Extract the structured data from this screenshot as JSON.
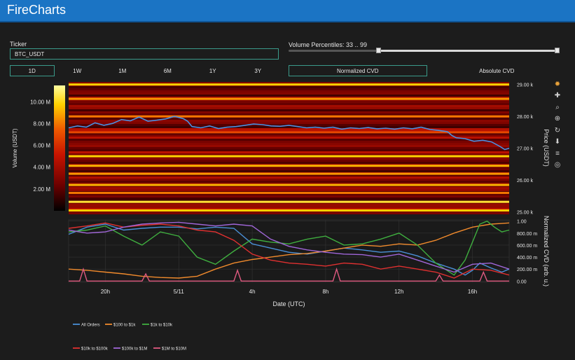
{
  "header": {
    "title": "FireCharts"
  },
  "controls": {
    "ticker_label": "Ticker",
    "ticker_value": "BTC_USDT",
    "volume_label": "Volume Percentiles: 33 .. 99",
    "volume_percentiles": [
      33,
      99
    ],
    "timeframes": [
      "1D",
      "1W",
      "1M",
      "6M",
      "1Y",
      "3Y"
    ],
    "active_timeframe": "1D",
    "modes": [
      "Normalized CVD",
      "Absolute CVD"
    ],
    "active_mode": "Normalized CVD"
  },
  "modebar_icons": [
    "plotly-logo-icon",
    "pan-icon",
    "zoom-icon",
    "zoom-in-icon",
    "reset-icon",
    "download-icon",
    "spike-lines-icon",
    "autoscale-icon"
  ],
  "chart_data": [
    {
      "type": "heatmap",
      "title": "",
      "colorbar_title": "Volume (USDT)",
      "colorbar_ticks": [
        "2.00 M",
        "4.00 M",
        "6.00 M",
        "8.00 M",
        "10.00 M"
      ],
      "colorbar_tick_values": [
        2,
        4,
        6,
        8,
        10
      ],
      "colorbar_range": [
        0,
        11.5
      ],
      "colorscale": [
        "#000000",
        "#6b0000",
        "#c81400",
        "#f05a00",
        "#ffd200",
        "#ffffa0"
      ],
      "ylabel": "Price (USDT)",
      "y_ticks": [
        "25.00 k",
        "26.00 k",
        "27.00 k",
        "28.00 k",
        "29.00 k"
      ],
      "y_tick_values": [
        25000,
        26000,
        27000,
        28000,
        29000
      ],
      "ylim": [
        24950,
        29080
      ],
      "bright_bands": [
        {
          "price": 25050,
          "intensity": 0.85
        },
        {
          "price": 25320,
          "intensity": 0.9
        },
        {
          "price": 25600,
          "intensity": 0.7
        },
        {
          "price": 25850,
          "intensity": 0.8
        },
        {
          "price": 26200,
          "intensity": 0.75
        },
        {
          "price": 26450,
          "intensity": 0.8
        },
        {
          "price": 26750,
          "intensity": 0.85
        },
        {
          "price": 27500,
          "intensity": 0.6
        },
        {
          "price": 28000,
          "intensity": 0.7
        },
        {
          "price": 28550,
          "intensity": 0.75
        },
        {
          "price": 29000,
          "intensity": 0.85
        }
      ],
      "price_series_color": "#4a90e2",
      "price_series": [
        [
          0,
          27640
        ],
        [
          2,
          27700
        ],
        [
          4,
          27660
        ],
        [
          6,
          27800
        ],
        [
          8,
          27720
        ],
        [
          10,
          27780
        ],
        [
          12,
          27900
        ],
        [
          14,
          27860
        ],
        [
          16,
          27980
        ],
        [
          18,
          27850
        ],
        [
          20,
          27880
        ],
        [
          22,
          27920
        ],
        [
          24,
          28000
        ],
        [
          26,
          27930
        ],
        [
          27,
          27850
        ],
        [
          28,
          27680
        ],
        [
          30,
          27640
        ],
        [
          32,
          27700
        ],
        [
          34,
          27620
        ],
        [
          36,
          27660
        ],
        [
          38,
          27680
        ],
        [
          40,
          27720
        ],
        [
          42,
          27760
        ],
        [
          44,
          27740
        ],
        [
          46,
          27700
        ],
        [
          48,
          27690
        ],
        [
          50,
          27720
        ],
        [
          52,
          27680
        ],
        [
          54,
          27640
        ],
        [
          56,
          27660
        ],
        [
          58,
          27630
        ],
        [
          60,
          27660
        ],
        [
          62,
          27600
        ],
        [
          64,
          27640
        ],
        [
          66,
          27620
        ],
        [
          68,
          27650
        ],
        [
          70,
          27610
        ],
        [
          72,
          27630
        ],
        [
          74,
          27600
        ],
        [
          76,
          27640
        ],
        [
          78,
          27610
        ],
        [
          80,
          27660
        ],
        [
          82,
          27590
        ],
        [
          84,
          27560
        ],
        [
          86,
          27520
        ],
        [
          87,
          27400
        ],
        [
          88,
          27330
        ],
        [
          90,
          27300
        ],
        [
          92,
          27220
        ],
        [
          94,
          27250
        ],
        [
          96,
          27200
        ],
        [
          98,
          27050
        ],
        [
          99,
          26960
        ],
        [
          100,
          27000
        ]
      ]
    },
    {
      "type": "line",
      "title": "",
      "xlabel": "Date (UTC)",
      "ylabel": "Normalized CVD (arb. u.)",
      "x_ticks": [
        "20h",
        "5/11",
        "4h",
        "8h",
        "12h",
        "16h"
      ],
      "x_tick_positions": [
        10,
        30,
        50,
        70,
        90,
        110
      ],
      "xlim": [
        0,
        120
      ],
      "y_ticks": [
        "0.00",
        "200.00 m",
        "400.00 m",
        "600.00 m",
        "800.00 m",
        "1.00"
      ],
      "y_tick_values": [
        0,
        0.2,
        0.4,
        0.6,
        0.8,
        1.0
      ],
      "ylim": [
        -0.02,
        1.02
      ],
      "legend_placement": "bottom",
      "series": [
        {
          "name": "All Orders",
          "color": "#4a8fd6",
          "points": [
            [
              0,
              0.78
            ],
            [
              5,
              0.9
            ],
            [
              10,
              0.95
            ],
            [
              15,
              0.85
            ],
            [
              20,
              0.88
            ],
            [
              25,
              0.9
            ],
            [
              30,
              0.9
            ],
            [
              35,
              0.87
            ],
            [
              40,
              0.9
            ],
            [
              45,
              0.88
            ],
            [
              50,
              0.62
            ],
            [
              55,
              0.55
            ],
            [
              60,
              0.48
            ],
            [
              65,
              0.45
            ],
            [
              70,
              0.5
            ],
            [
              75,
              0.55
            ],
            [
              80,
              0.52
            ],
            [
              85,
              0.48
            ],
            [
              90,
              0.5
            ],
            [
              95,
              0.42
            ],
            [
              100,
              0.3
            ],
            [
              105,
              0.2
            ],
            [
              108,
              0.1
            ],
            [
              110,
              0.18
            ],
            [
              112,
              0.3
            ],
            [
              115,
              0.22
            ],
            [
              118,
              0.15
            ],
            [
              120,
              0.2
            ]
          ]
        },
        {
          "name": "$100 to $1k",
          "color": "#f08a2c",
          "points": [
            [
              0,
              0.2
            ],
            [
              5,
              0.18
            ],
            [
              10,
              0.15
            ],
            [
              15,
              0.12
            ],
            [
              20,
              0.08
            ],
            [
              25,
              0.06
            ],
            [
              30,
              0.05
            ],
            [
              35,
              0.08
            ],
            [
              40,
              0.2
            ],
            [
              45,
              0.3
            ],
            [
              50,
              0.36
            ],
            [
              55,
              0.4
            ],
            [
              60,
              0.44
            ],
            [
              65,
              0.46
            ],
            [
              70,
              0.5
            ],
            [
              75,
              0.55
            ],
            [
              80,
              0.6
            ],
            [
              85,
              0.58
            ],
            [
              90,
              0.62
            ],
            [
              95,
              0.6
            ],
            [
              100,
              0.68
            ],
            [
              105,
              0.8
            ],
            [
              110,
              0.9
            ],
            [
              115,
              0.95
            ],
            [
              120,
              0.97
            ]
          ]
        },
        {
          "name": "$1k to $10k",
          "color": "#3fae3f",
          "points": [
            [
              0,
              0.82
            ],
            [
              5,
              0.85
            ],
            [
              10,
              0.92
            ],
            [
              15,
              0.75
            ],
            [
              20,
              0.6
            ],
            [
              25,
              0.82
            ],
            [
              30,
              0.75
            ],
            [
              35,
              0.4
            ],
            [
              40,
              0.28
            ],
            [
              45,
              0.5
            ],
            [
              50,
              0.7
            ],
            [
              55,
              0.65
            ],
            [
              60,
              0.62
            ],
            [
              65,
              0.7
            ],
            [
              70,
              0.75
            ],
            [
              75,
              0.6
            ],
            [
              80,
              0.62
            ],
            [
              85,
              0.7
            ],
            [
              90,
              0.8
            ],
            [
              95,
              0.6
            ],
            [
              100,
              0.3
            ],
            [
              105,
              0.1
            ],
            [
              108,
              0.35
            ],
            [
              110,
              0.65
            ],
            [
              112,
              0.95
            ],
            [
              114,
              1.0
            ],
            [
              116,
              0.9
            ],
            [
              118,
              0.82
            ],
            [
              120,
              0.85
            ]
          ]
        },
        {
          "name": "$10k to $100k",
          "color": "#e03030",
          "points": [
            [
              0,
              0.88
            ],
            [
              5,
              0.92
            ],
            [
              10,
              0.97
            ],
            [
              15,
              0.9
            ],
            [
              20,
              0.93
            ],
            [
              25,
              0.95
            ],
            [
              30,
              0.92
            ],
            [
              35,
              0.85
            ],
            [
              40,
              0.82
            ],
            [
              45,
              0.68
            ],
            [
              50,
              0.45
            ],
            [
              55,
              0.35
            ],
            [
              60,
              0.3
            ],
            [
              65,
              0.28
            ],
            [
              70,
              0.25
            ],
            [
              75,
              0.3
            ],
            [
              80,
              0.28
            ],
            [
              85,
              0.2
            ],
            [
              90,
              0.25
            ],
            [
              95,
              0.2
            ],
            [
              100,
              0.15
            ],
            [
              105,
              0.05
            ],
            [
              110,
              0.2
            ],
            [
              115,
              0.18
            ],
            [
              120,
              0.1
            ]
          ]
        },
        {
          "name": "$100k to $1M",
          "color": "#a066d8",
          "points": [
            [
              0,
              0.85
            ],
            [
              5,
              0.8
            ],
            [
              10,
              0.82
            ],
            [
              15,
              0.9
            ],
            [
              20,
              0.95
            ],
            [
              25,
              0.97
            ],
            [
              30,
              0.98
            ],
            [
              35,
              0.95
            ],
            [
              40,
              0.92
            ],
            [
              45,
              0.95
            ],
            [
              50,
              0.92
            ],
            [
              55,
              0.7
            ],
            [
              60,
              0.58
            ],
            [
              65,
              0.52
            ],
            [
              70,
              0.48
            ],
            [
              75,
              0.45
            ],
            [
              80,
              0.44
            ],
            [
              85,
              0.4
            ],
            [
              90,
              0.45
            ],
            [
              95,
              0.35
            ],
            [
              100,
              0.25
            ],
            [
              105,
              0.15
            ],
            [
              110,
              0.28
            ],
            [
              115,
              0.3
            ],
            [
              120,
              0.2
            ]
          ]
        },
        {
          "name": "$1M to $10M",
          "color": "#e05a80",
          "points": [
            [
              0,
              0.0
            ],
            [
              3,
              0.0
            ],
            [
              4,
              0.2
            ],
            [
              5,
              0.0
            ],
            [
              20,
              0.0
            ],
            [
              21,
              0.12
            ],
            [
              22,
              0.0
            ],
            [
              45,
              0.0
            ],
            [
              46,
              0.18
            ],
            [
              47,
              0.0
            ],
            [
              72,
              0.0
            ],
            [
              73,
              0.2
            ],
            [
              74,
              0.0
            ],
            [
              100,
              0.0
            ],
            [
              101,
              0.1
            ],
            [
              102,
              0.0
            ],
            [
              112,
              0.0
            ],
            [
              113,
              0.15
            ],
            [
              114,
              0.0
            ],
            [
              120,
              0.0
            ]
          ]
        }
      ]
    }
  ]
}
